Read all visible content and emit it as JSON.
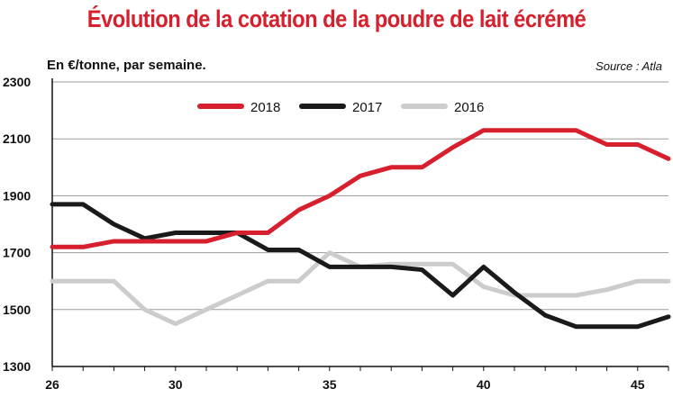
{
  "chart_data": {
    "type": "line",
    "title": "Évolution de la cotation de la poudre de lait écrémé",
    "subtitle": "En €/tonne, par semaine.",
    "source": "Source : Atla",
    "xlim": [
      26,
      46
    ],
    "ylim": [
      1300,
      2300
    ],
    "x_ticks": [
      26,
      30,
      35,
      40,
      45
    ],
    "y_ticks": [
      1300,
      1500,
      1700,
      1900,
      2100,
      2300
    ],
    "grid": true,
    "legend_position": "top",
    "x": [
      26,
      27,
      28,
      29,
      30,
      31,
      32,
      33,
      34,
      35,
      36,
      37,
      38,
      39,
      40,
      41,
      42,
      43,
      44,
      45,
      46
    ],
    "series": [
      {
        "name": "2018",
        "color": "#d6202e",
        "values": [
          1720,
          1720,
          1740,
          1740,
          1740,
          1740,
          1770,
          1770,
          1850,
          1900,
          1970,
          2000,
          2000,
          2070,
          2130,
          2130,
          2130,
          2130,
          2080,
          2080,
          2030
        ]
      },
      {
        "name": "2017",
        "color": "#1a1a1a",
        "values": [
          1870,
          1870,
          1800,
          1750,
          1770,
          1770,
          1770,
          1710,
          1710,
          1650,
          1650,
          1650,
          1640,
          1550,
          1650,
          1560,
          1480,
          1440,
          1440,
          1440,
          1475
        ]
      },
      {
        "name": "2016",
        "color": "#cccccc",
        "values": [
          1600,
          1600,
          1600,
          1500,
          1450,
          1500,
          1550,
          1600,
          1600,
          1700,
          1650,
          1660,
          1660,
          1660,
          1580,
          1550,
          1550,
          1550,
          1570,
          1600,
          1600
        ]
      }
    ]
  }
}
